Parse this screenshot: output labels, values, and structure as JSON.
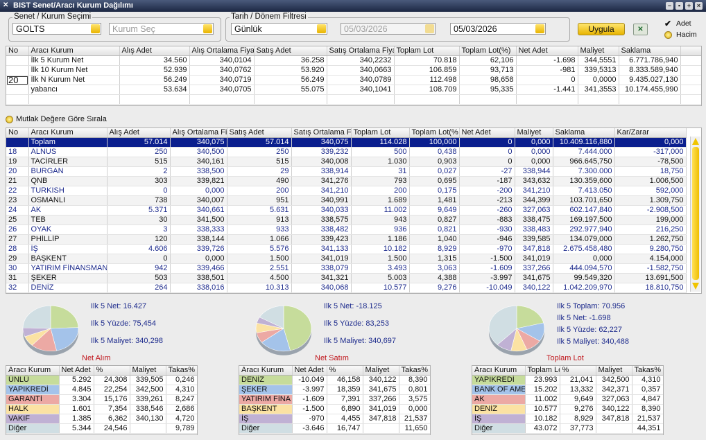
{
  "window": {
    "title": "BIST Senet/Aracı Kurum Dağılımı"
  },
  "filters": {
    "stock_group": "Senet / Kurum Seçimi",
    "stock": "GOLTS",
    "broker_placeholder": "Kurum Seç",
    "date_group": "Tarih / Dönem Filtresi",
    "period": "Günlük",
    "start_date": "05/03/2026",
    "end_date": "05/03/2026",
    "apply": "Uygula",
    "units": [
      {
        "label": "Adet",
        "checked": true
      },
      {
        "label": "Hacim",
        "checked": false
      }
    ]
  },
  "summary_table": {
    "columns": [
      "No",
      "Aracı Kurum",
      "Alış Adet",
      "Alış Ortalama Fiyat",
      "Satış Adet",
      "Satış Ortalama Fiyat",
      "Toplam Lot",
      "Toplam Lot(%)",
      "Net Adet",
      "Maliyet",
      "Saklama"
    ],
    "rows": [
      [
        null,
        "İlk 5 Kurum Net",
        "34.560",
        "340,0104",
        "36.258",
        "340,2232",
        "70.818",
        "62,106",
        "-1.698",
        "344,5551",
        "6.771.786,940"
      ],
      [
        null,
        "İlk 10 Kurum Net",
        "52.939",
        "340,0762",
        "53.920",
        "340,0663",
        "106.859",
        "93,713",
        "-981",
        "339,5313",
        "8.333.589,940"
      ],
      [
        "20",
        "İlk N Kurum Net",
        "56.249",
        "340,0719",
        "56.249",
        "340,0789",
        "112.498",
        "98,658",
        "0",
        "0,0000",
        "9.435.027,130"
      ],
      [
        null,
        "yabancı",
        "53.634",
        "340,0705",
        "55.075",
        "340,1041",
        "108.709",
        "95,335",
        "-1.441",
        "341,3553",
        "10.174.455,990"
      ]
    ]
  },
  "sort_option": {
    "label": "Mutlak Değere Göre Sırala",
    "checked": false
  },
  "broker_table": {
    "columns": [
      "No",
      "Aracı Kurum",
      "Alış Adet",
      "Alış Ortalama Fiy",
      "Satış Adet",
      "Satış Ortalama Fi",
      "Toplam Lot",
      "Toplam Lot(%",
      "Net Adet",
      "Maliyet",
      "Saklama",
      "Kar/Zarar"
    ],
    "selected_row": 0,
    "rows": [
      [
        null,
        "Toplam",
        "57.014",
        "340,075",
        "57.014",
        "340,075",
        "114.028",
        "100,000",
        "0",
        "0,000",
        "10.409.116,880",
        "0,000"
      ],
      [
        "18",
        "ALNUS",
        "250",
        "340,500",
        "250",
        "339,232",
        "500",
        "0,438",
        "0",
        "0,000",
        "7.444.000",
        "-317,000"
      ],
      [
        "19",
        "TACİRLER",
        "515",
        "340,161",
        "515",
        "340,008",
        "1.030",
        "0,903",
        "0",
        "0,000",
        "966.645,750",
        "-78,500"
      ],
      [
        "20",
        "BURGAN",
        "2",
        "338,500",
        "29",
        "338,914",
        "31",
        "0,027",
        "-27",
        "338,944",
        "7.300.000",
        "18,750"
      ],
      [
        "21",
        "QNB",
        "303",
        "339,821",
        "490",
        "341,276",
        "793",
        "0,695",
        "-187",
        "343,632",
        "130.359,600",
        "1.006,500"
      ],
      [
        "22",
        "TURKISH",
        "0",
        "0,000",
        "200",
        "341,210",
        "200",
        "0,175",
        "-200",
        "341,210",
        "7.413.050",
        "592,000"
      ],
      [
        "23",
        "OSMANLI",
        "738",
        "340,007",
        "951",
        "340,991",
        "1.689",
        "1,481",
        "-213",
        "344,399",
        "103.701,650",
        "1.309,750"
      ],
      [
        "24",
        "AK",
        "5.371",
        "340,661",
        "5.631",
        "340,033",
        "11.002",
        "9,649",
        "-260",
        "327,063",
        "602.147,840",
        "-2.908,500"
      ],
      [
        "25",
        "TEB",
        "30",
        "341,500",
        "913",
        "338,575",
        "943",
        "0,827",
        "-883",
        "338,475",
        "169.197,500",
        "199,000"
      ],
      [
        "26",
        "OYAK",
        "3",
        "338,333",
        "933",
        "338,482",
        "936",
        "0,821",
        "-930",
        "338,483",
        "292.977,940",
        "216,250"
      ],
      [
        "27",
        "PHİLLİP",
        "120",
        "338,144",
        "1.066",
        "339,423",
        "1.186",
        "1,040",
        "-946",
        "339,585",
        "134.079,000",
        "1.262,750"
      ],
      [
        "28",
        "İŞ",
        "4.606",
        "339,726",
        "5.576",
        "341,133",
        "10.182",
        "8,929",
        "-970",
        "347,818",
        "2.675.458,480",
        "9.280,750"
      ],
      [
        "29",
        "BAŞKENT",
        "0",
        "0,000",
        "1.500",
        "341,019",
        "1.500",
        "1,315",
        "-1.500",
        "341,019",
        "0,000",
        "4.154,000"
      ],
      [
        "30",
        "YATIRIM FİNANSMAN",
        "942",
        "339,466",
        "2.551",
        "338,079",
        "3.493",
        "3,063",
        "-1.609",
        "337,266",
        "444.094,570",
        "-1.582,750"
      ],
      [
        "31",
        "ŞEKER",
        "503",
        "338,501",
        "4.500",
        "341,321",
        "5.003",
        "4,388",
        "-3.997",
        "341,675",
        "99.549,320",
        "13.691,500"
      ],
      [
        "32",
        "DENİZ",
        "264",
        "338,016",
        "10.313",
        "340,068",
        "10.577",
        "9,276",
        "-10.049",
        "340,122",
        "1.042.209,970",
        "18.810,750"
      ]
    ]
  },
  "panels": [
    {
      "title": "Net Alım",
      "stats": [
        "Ilk 5 Net: 16.427",
        "Ilk 5 Yüzde: 75,454",
        "Ilk 5 Maliyet: 340,298"
      ],
      "table": {
        "columns": [
          "Aracı Kurum",
          "Net Adet",
          "%",
          "Maliyet",
          "Takas%"
        ],
        "rows": [
          {
            "cells": [
              "ÜNLÜ",
              "5.292",
              "24,308",
              "339,505",
              "0,246"
            ],
            "color": "#c6dc9b"
          },
          {
            "cells": [
              "YAPIKREDİ",
              "4.845",
              "22,254",
              "342,500",
              "4,310"
            ],
            "color": "#a4c3ea"
          },
          {
            "cells": [
              "GARANTİ",
              "3.304",
              "15,176",
              "339,261",
              "8,247"
            ],
            "color": "#eca9a4"
          },
          {
            "cells": [
              "HALK",
              "1.601",
              "7,354",
              "338,546",
              "2,686"
            ],
            "color": "#fbe2a3"
          },
          {
            "cells": [
              "VAKIF",
              "1.385",
              "6,362",
              "340,130",
              "4,720"
            ],
            "color": "#c0b1d4"
          },
          {
            "cells": [
              "Diğer",
              "5.344",
              "24,546",
              null,
              "9,789"
            ],
            "color": "#d0dee3"
          }
        ]
      }
    },
    {
      "title": "Net Satım",
      "stats": [
        "Ilk 5 Net: -18.125",
        "Ilk 5 Yüzde: 83,253",
        "Ilk 5 Maliyet: 340,697"
      ],
      "table": {
        "columns": [
          "Aracı Kurum",
          "Net Adet",
          "%",
          "Maliyet",
          "Takas%"
        ],
        "rows": [
          {
            "cells": [
              "DENİZ",
              "-10.049",
              "46,158",
              "340,122",
              "8,390"
            ],
            "color": "#c6dc9b"
          },
          {
            "cells": [
              "ŞEKER",
              "-3.997",
              "18,359",
              "341,675",
              "0,801"
            ],
            "color": "#a4c3ea"
          },
          {
            "cells": [
              "YATIRIM FİNA",
              "-1.609",
              "7,391",
              "337,266",
              "3,575"
            ],
            "color": "#eca9a4"
          },
          {
            "cells": [
              "BAŞKENT",
              "-1.500",
              "6,890",
              "341,019",
              "0,000"
            ],
            "color": "#fbe2a3"
          },
          {
            "cells": [
              "İŞ",
              "-970",
              "4,455",
              "347,818",
              "21,537"
            ],
            "color": "#c0b1d4"
          },
          {
            "cells": [
              "Diğer",
              "-3.646",
              "16,747",
              null,
              "11,650"
            ],
            "color": "#d0dee3"
          }
        ]
      }
    },
    {
      "title": "Toplam Lot",
      "stats": [
        "Ilk 5 Toplam: 70.956",
        "Ilk 5 Net: -1.698",
        "Ilk 5 Yüzde: 62,227",
        "Ilk 5 Maliyet: 340,488"
      ],
      "table": {
        "columns": [
          "Aracı Kurum",
          "Toplam Lot",
          "%",
          "Maliyet",
          "Takas%"
        ],
        "rows": [
          {
            "cells": [
              "YAPIKREDİ",
              "23.993",
              "21,041",
              "342,500",
              "4,310"
            ],
            "color": "#c6dc9b"
          },
          {
            "cells": [
              "BANK OF AME",
              "15.202",
              "13,332",
              "342,371",
              "0,357"
            ],
            "color": "#a4c3ea"
          },
          {
            "cells": [
              "AK",
              "11.002",
              "9,649",
              "327,063",
              "4,847"
            ],
            "color": "#eca9a4"
          },
          {
            "cells": [
              "DENİZ",
              "10.577",
              "9,276",
              "340,122",
              "8,390"
            ],
            "color": "#fbe2a3"
          },
          {
            "cells": [
              "İŞ",
              "10.182",
              "8,929",
              "347,818",
              "21,537"
            ],
            "color": "#c0b1d4"
          },
          {
            "cells": [
              "Diğer",
              "43.072",
              "37,773",
              null,
              "44,351"
            ],
            "color": "#d0dee3"
          }
        ]
      }
    }
  ]
}
